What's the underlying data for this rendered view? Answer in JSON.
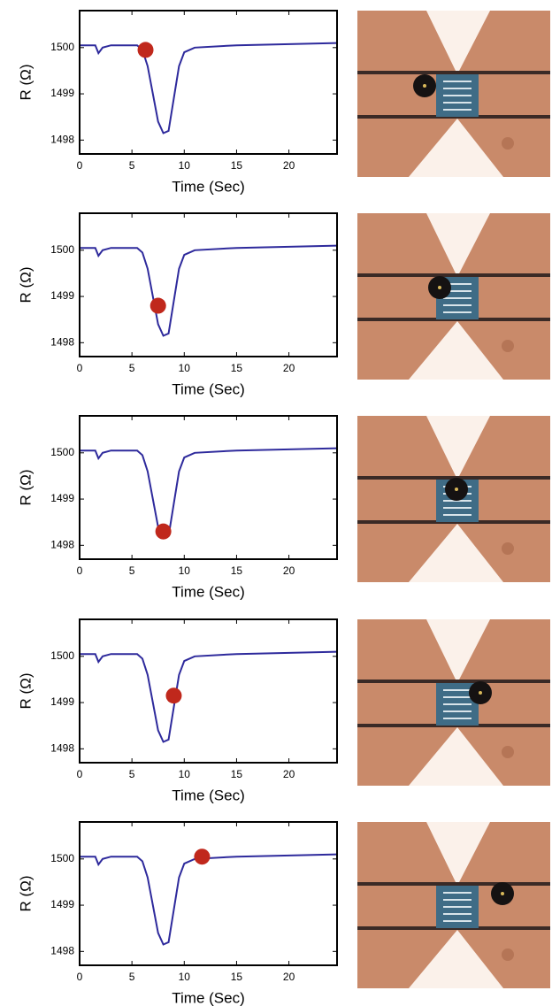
{
  "chart_data": [
    {
      "type": "line",
      "xlabel": "Time (Sec)",
      "ylabel": "R (Ω)",
      "xlim": [
        0,
        24.6
      ],
      "ylim": [
        1497.7,
        1500.8
      ],
      "xticks": [
        0,
        5,
        10,
        15,
        20
      ],
      "yticks": [
        1498,
        1499,
        1500
      ],
      "x": [
        0,
        1.5,
        1.8,
        2.2,
        3,
        5.5,
        6,
        6.5,
        7,
        7.5,
        8,
        8.5,
        9,
        9.5,
        10,
        11,
        15,
        24.6
      ],
      "series": [
        {
          "color": "#2e2a9c",
          "values": [
            1500.05,
            1500.05,
            1499.88,
            1500.0,
            1500.05,
            1500.05,
            1499.95,
            1499.6,
            1499.0,
            1498.4,
            1498.15,
            1498.2,
            1498.9,
            1499.6,
            1499.9,
            1500.0,
            1500.05,
            1500.1
          ]
        }
      ],
      "marker": {
        "x": 6.3,
        "y": 1499.95,
        "color": "#c0281c"
      }
    },
    {
      "type": "line",
      "xlabel": "Time (Sec)",
      "ylabel": "R (Ω)",
      "xlim": [
        0,
        24.6
      ],
      "ylim": [
        1497.7,
        1500.8
      ],
      "xticks": [
        0,
        5,
        10,
        15,
        20
      ],
      "yticks": [
        1498,
        1499,
        1500
      ],
      "x": [
        0,
        1.5,
        1.8,
        2.2,
        3,
        5.5,
        6,
        6.5,
        7,
        7.5,
        8,
        8.5,
        9,
        9.5,
        10,
        11,
        15,
        24.6
      ],
      "series": [
        {
          "color": "#2e2a9c",
          "values": [
            1500.05,
            1500.05,
            1499.88,
            1500.0,
            1500.05,
            1500.05,
            1499.95,
            1499.6,
            1499.0,
            1498.4,
            1498.15,
            1498.2,
            1498.9,
            1499.6,
            1499.9,
            1500.0,
            1500.05,
            1500.1
          ]
        }
      ],
      "marker": {
        "x": 7.5,
        "y": 1498.8,
        "color": "#c0281c"
      }
    },
    {
      "type": "line",
      "xlabel": "Time (Sec)",
      "ylabel": "R (Ω)",
      "xlim": [
        0,
        24.6
      ],
      "ylim": [
        1497.7,
        1500.8
      ],
      "xticks": [
        0,
        5,
        10,
        15,
        20
      ],
      "yticks": [
        1498,
        1499,
        1500
      ],
      "x": [
        0,
        1.5,
        1.8,
        2.2,
        3,
        5.5,
        6,
        6.5,
        7,
        7.5,
        8,
        8.5,
        9,
        9.5,
        10,
        11,
        15,
        24.6
      ],
      "series": [
        {
          "color": "#2e2a9c",
          "values": [
            1500.05,
            1500.05,
            1499.88,
            1500.0,
            1500.05,
            1500.05,
            1499.95,
            1499.6,
            1499.0,
            1498.4,
            1498.15,
            1498.2,
            1498.9,
            1499.6,
            1499.9,
            1500.0,
            1500.05,
            1500.1
          ]
        }
      ],
      "marker": {
        "x": 8,
        "y": 1498.3,
        "color": "#c0281c"
      }
    },
    {
      "type": "line",
      "xlabel": "Time (Sec)",
      "ylabel": "R (Ω)",
      "xlim": [
        0,
        24.6
      ],
      "ylim": [
        1497.7,
        1500.8
      ],
      "xticks": [
        0,
        5,
        10,
        15,
        20
      ],
      "yticks": [
        1498,
        1499,
        1500
      ],
      "x": [
        0,
        1.5,
        1.8,
        2.2,
        3,
        5.5,
        6,
        6.5,
        7,
        7.5,
        8,
        8.5,
        9,
        9.5,
        10,
        11,
        15,
        24.6
      ],
      "series": [
        {
          "color": "#2e2a9c",
          "values": [
            1500.05,
            1500.05,
            1499.88,
            1500.0,
            1500.05,
            1500.05,
            1499.95,
            1499.6,
            1499.0,
            1498.4,
            1498.15,
            1498.2,
            1498.9,
            1499.6,
            1499.9,
            1500.0,
            1500.05,
            1500.1
          ]
        }
      ],
      "marker": {
        "x": 9,
        "y": 1499.15,
        "color": "#c0281c"
      }
    },
    {
      "type": "line",
      "xlabel": "Time (Sec)",
      "ylabel": "R (Ω)",
      "xlim": [
        0,
        24.6
      ],
      "ylim": [
        1497.7,
        1500.8
      ],
      "xticks": [
        0,
        5,
        10,
        15,
        20
      ],
      "yticks": [
        1498,
        1499,
        1500
      ],
      "x": [
        0,
        1.5,
        1.8,
        2.2,
        3,
        5.5,
        6,
        6.5,
        7,
        7.5,
        8,
        8.5,
        9,
        9.5,
        10,
        11,
        15,
        24.6
      ],
      "series": [
        {
          "color": "#2e2a9c",
          "values": [
            1500.05,
            1500.05,
            1499.88,
            1500.0,
            1500.05,
            1500.05,
            1499.95,
            1499.6,
            1499.0,
            1498.4,
            1498.15,
            1498.2,
            1498.9,
            1499.6,
            1499.9,
            1500.0,
            1500.05,
            1500.1
          ]
        }
      ],
      "marker": {
        "x": 11.7,
        "y": 1500.05,
        "color": "#c0281c"
      }
    }
  ]
}
